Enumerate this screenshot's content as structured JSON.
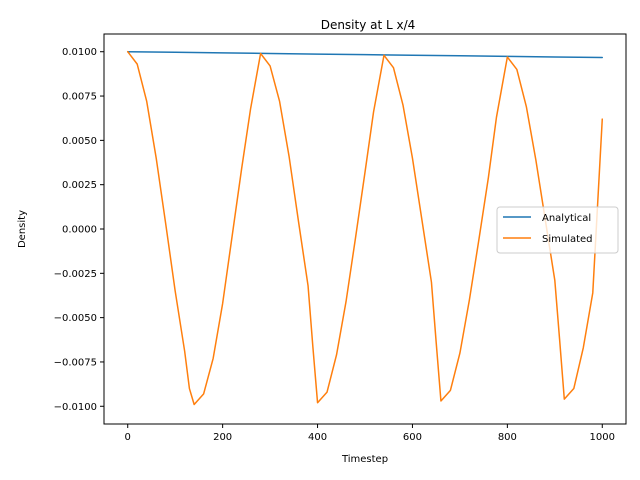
{
  "chart_data": {
    "type": "line",
    "title": "Density at L x/4",
    "xlabel": "Timestep",
    "ylabel": "Density",
    "xlim": [
      -50,
      1050
    ],
    "ylim": [
      -0.011,
      0.011
    ],
    "xticks": [
      0,
      200,
      400,
      600,
      800,
      1000
    ],
    "xtick_labels": [
      "0",
      "200",
      "400",
      "600",
      "800",
      "1000"
    ],
    "yticks": [
      0.01,
      0.0075,
      0.005,
      0.0025,
      0.0,
      -0.0025,
      -0.005,
      -0.0075,
      -0.01
    ],
    "ytick_labels": [
      "0.0100",
      "0.0075",
      "0.0050",
      "0.0025",
      "0.0000",
      "−0.0025",
      "−0.0050",
      "−0.0075",
      "−0.0100"
    ],
    "grid": false,
    "legend_position": "center-right",
    "series": [
      {
        "name": "Analytical",
        "color": "#1f77b4",
        "x": [
          0,
          100,
          200,
          300,
          400,
          500,
          600,
          700,
          800,
          900,
          1000
        ],
        "y": [
          0.01,
          0.009967,
          0.009934,
          0.009901,
          0.009868,
          0.009835,
          0.009802,
          0.00977,
          0.009737,
          0.009705,
          0.009672
        ]
      },
      {
        "name": "Simulated",
        "color": "#ff7f0e",
        "x": [
          0,
          20,
          40,
          60,
          80,
          100,
          120,
          130,
          140,
          160,
          180,
          200,
          220,
          240,
          259,
          280,
          300,
          320,
          340,
          360,
          380,
          390,
          400,
          420,
          440,
          460,
          480,
          500,
          518,
          540,
          560,
          580,
          600,
          620,
          640,
          650,
          660,
          680,
          700,
          720,
          740,
          760,
          777,
          800,
          820,
          840,
          860,
          880,
          900,
          910,
          920,
          940,
          960,
          980,
          1000
        ],
        "y": [
          0.01,
          0.0093,
          0.0072,
          0.004,
          0.0003,
          -0.0035,
          -0.0069,
          -0.009,
          -0.0099,
          -0.0093,
          -0.0073,
          -0.0042,
          -0.0004,
          0.0034,
          0.0068,
          0.0099,
          0.0092,
          0.0072,
          0.0041,
          0.0004,
          -0.0032,
          -0.0066,
          -0.0098,
          -0.0092,
          -0.0071,
          -0.0041,
          -0.0005,
          0.0032,
          0.0066,
          0.0098,
          0.0091,
          0.007,
          0.004,
          0.0005,
          -0.003,
          -0.0064,
          -0.0097,
          -0.0091,
          -0.007,
          -0.004,
          -0.0006,
          0.0029,
          0.0063,
          0.0097,
          0.009,
          0.0069,
          0.0039,
          0.0005,
          -0.0029,
          -0.0062,
          -0.0096,
          -0.009,
          -0.0067,
          -0.0036,
          0.0062
        ]
      }
    ]
  }
}
